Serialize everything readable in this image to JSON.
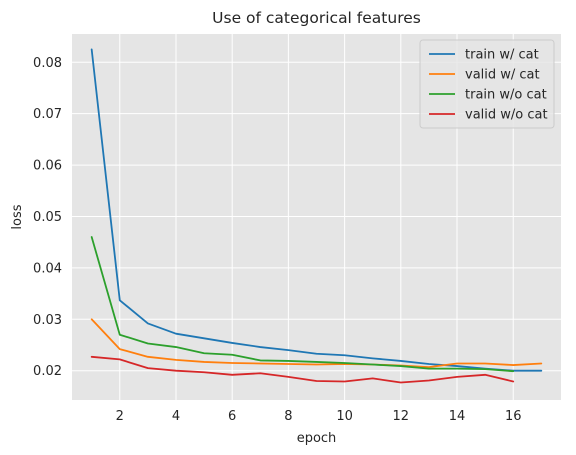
{
  "chart_data": {
    "type": "line",
    "title": "Use of categorical features",
    "xlabel": "epoch",
    "ylabel": "loss",
    "xlim": [
      0.3,
      17.7
    ],
    "ylim": [
      0.0143,
      0.0855
    ],
    "xticks": [
      2,
      4,
      6,
      8,
      10,
      12,
      14,
      16
    ],
    "yticks": [
      0.02,
      0.03,
      0.04,
      0.05,
      0.06,
      0.07,
      0.08
    ],
    "ytick_labels": [
      "0.02",
      "0.03",
      "0.04",
      "0.05",
      "0.06",
      "0.07",
      "0.08"
    ],
    "grid": true,
    "legend_position": "top-right",
    "series": [
      {
        "name": "train w/ cat",
        "color": "#1f77b4",
        "x": [
          1,
          2,
          3,
          4,
          5,
          6,
          7,
          8,
          9,
          10,
          11,
          12,
          13,
          14,
          15,
          16,
          17
        ],
        "y": [
          0.0825,
          0.0337,
          0.0292,
          0.0272,
          0.0263,
          0.0254,
          0.0246,
          0.024,
          0.0233,
          0.023,
          0.0224,
          0.0219,
          0.0213,
          0.0209,
          0.0204,
          0.02,
          0.02
        ]
      },
      {
        "name": "valid w/ cat",
        "color": "#ff7f0e",
        "x": [
          1,
          2,
          3,
          4,
          5,
          6,
          7,
          8,
          9,
          10,
          11,
          12,
          13,
          14,
          15,
          16,
          17
        ],
        "y": [
          0.03,
          0.0242,
          0.0227,
          0.0221,
          0.0217,
          0.0215,
          0.0214,
          0.0213,
          0.0212,
          0.0213,
          0.0212,
          0.021,
          0.0207,
          0.0214,
          0.0214,
          0.0211,
          0.0214
        ]
      },
      {
        "name": "train w/o cat",
        "color": "#2ca02c",
        "x": [
          1,
          2,
          3,
          4,
          5,
          6,
          7,
          8,
          9,
          10,
          11,
          12,
          13,
          14,
          15,
          16
        ],
        "y": [
          0.046,
          0.027,
          0.0253,
          0.0246,
          0.0234,
          0.0231,
          0.022,
          0.0219,
          0.0217,
          0.0215,
          0.0212,
          0.0209,
          0.0204,
          0.0204,
          0.0203,
          0.0199
        ]
      },
      {
        "name": "valid w/o cat",
        "color": "#d62728",
        "x": [
          1,
          2,
          3,
          4,
          5,
          6,
          7,
          8,
          9,
          10,
          11,
          12,
          13,
          14,
          15,
          16
        ],
        "y": [
          0.0227,
          0.0222,
          0.0205,
          0.02,
          0.0197,
          0.0192,
          0.0195,
          0.0188,
          0.018,
          0.0179,
          0.0185,
          0.0177,
          0.0181,
          0.0188,
          0.0192,
          0.0179
        ]
      }
    ]
  },
  "colors": {
    "plot_background": "#e5e5e5",
    "grid": "#ffffff",
    "text": "#262626"
  }
}
